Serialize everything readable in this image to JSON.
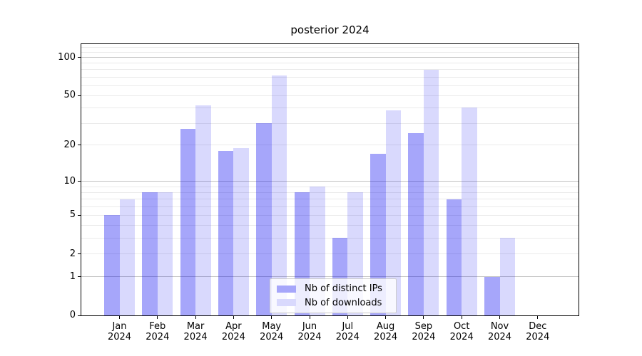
{
  "title": "posterior 2024",
  "chart_data": {
    "type": "bar",
    "title": "posterior 2024",
    "categories": [
      "Jan 2024",
      "Feb 2024",
      "Mar 2024",
      "Apr 2024",
      "May 2024",
      "Jun 2024",
      "Jul 2024",
      "Aug 2024",
      "Sep 2024",
      "Oct 2024",
      "Nov 2024",
      "Dec 2024"
    ],
    "series": [
      {
        "name": "Nb of distinct IPs",
        "values": [
          5,
          8,
          27,
          18,
          30,
          8,
          3,
          17,
          25,
          7,
          1,
          0
        ],
        "color": "rgba(0,0,240,0.35)",
        "swatch": "#a6a6fa"
      },
      {
        "name": "Nb of downloads",
        "values": [
          7,
          8,
          42,
          19,
          72,
          9,
          8,
          38,
          80,
          40,
          3,
          0
        ],
        "color": "rgba(0,0,240,0.15)",
        "swatch": "#d9d9fd"
      }
    ],
    "xlabel": "",
    "ylabel": "",
    "yscale": "log1p",
    "y_axis": {
      "ticks": [
        0,
        1,
        2,
        5,
        10,
        20,
        50,
        100
      ],
      "max": 127,
      "major_gridlines": [
        1,
        10,
        100
      ],
      "minor_gridlines": [
        2,
        3,
        4,
        5,
        6,
        7,
        8,
        9,
        20,
        30,
        40,
        50,
        60,
        70,
        80,
        90,
        110,
        120
      ]
    },
    "grid": true,
    "legend_position": "lower-center-inside"
  },
  "colors": {
    "bar_ips": "#a6a6fa",
    "bar_downloads": "#d9d9fd",
    "grid_minor": "#eaeaea",
    "grid_major": "#c2c2c2",
    "axis": "#000000",
    "legend_border": "#cccccc"
  }
}
